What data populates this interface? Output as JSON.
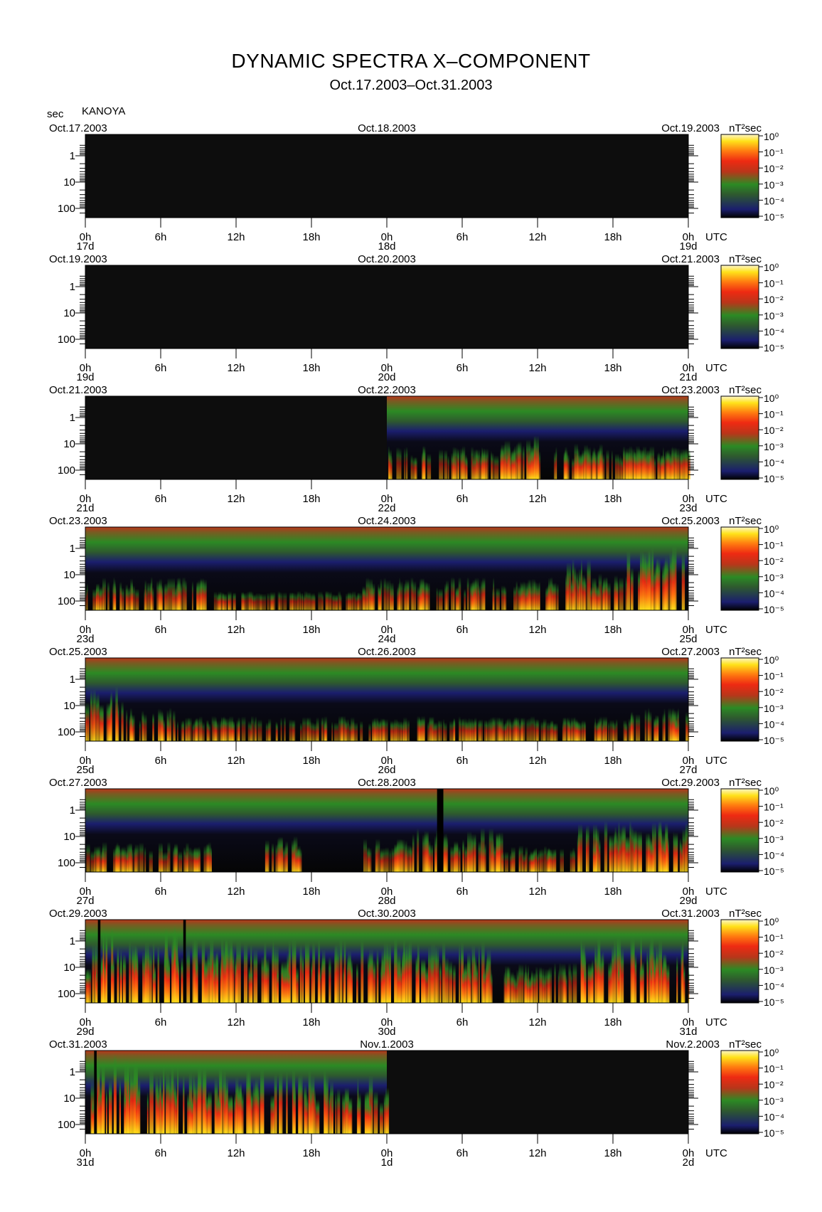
{
  "title": "DYNAMIC SPECTRA X–COMPONENT",
  "subtitle": "Oct.17.2003–Oct.31.2003",
  "y_unit": "sec",
  "station": "KANOYA",
  "colors": {
    "background": "#ffffff",
    "nodata": "#0d0d0d",
    "colormap": [
      "#000000",
      "#1b1e6e",
      "#2e5a2e",
      "#2c8a24",
      "#b8361a",
      "#ee2a12",
      "#ff7a10",
      "#ffe21a",
      "#fff6c8"
    ]
  },
  "chart_data": {
    "type": "heatmap",
    "title": "DYNAMIC SPECTRA X–COMPONENT",
    "subtitle": "Oct.17.2003–Oct.31.2003",
    "ylabel": "sec",
    "colorbar_label": "nT²sec",
    "colorbar_ticks": [
      "10⁰",
      "10⁻¹",
      "10⁻²",
      "10⁻³",
      "10⁻⁴",
      "10⁻⁵"
    ],
    "colorbar_range": [
      -5,
      0
    ],
    "y_ticks": [
      "1",
      "10",
      "100"
    ],
    "y_scale": "log",
    "x_ticks": [
      "0h",
      "6h",
      "12h",
      "18h",
      "0h",
      "6h",
      "12h",
      "18h",
      "0h"
    ],
    "x_unit_label": "UTC",
    "panels": [
      {
        "start_date": "Oct.17.2003",
        "mid_date": "Oct.18.2003",
        "end_date": "Oct.19.2003",
        "day_labels": [
          "17d",
          "18d",
          "19d"
        ],
        "data_start_hour": null,
        "data_end_hour": null,
        "gaps": [],
        "activity": []
      },
      {
        "start_date": "Oct.19.2003",
        "mid_date": "Oct.20.2003",
        "end_date": "Oct.21.2003",
        "day_labels": [
          "19d",
          "20d",
          "21d"
        ],
        "data_start_hour": null,
        "data_end_hour": null,
        "gaps": [],
        "activity": []
      },
      {
        "start_date": "Oct.21.2003",
        "mid_date": "Oct.22.2003",
        "end_date": "Oct.23.2003",
        "day_labels": [
          "21d",
          "22d",
          "23d"
        ],
        "data_start_hour": 24,
        "data_end_hour": 48,
        "gaps": [],
        "activity": [
          [
            24,
            48,
            0.3
          ],
          [
            33,
            36,
            0.45
          ],
          [
            38,
            41,
            0.35
          ],
          [
            43,
            47,
            0.3
          ]
        ]
      },
      {
        "start_date": "Oct.23.2003",
        "mid_date": "Oct.24.2003",
        "end_date": "Oct.25.2003",
        "day_labels": [
          "23d",
          "24d",
          "25d"
        ],
        "data_start_hour": 0,
        "data_end_hour": 48,
        "gaps": [],
        "activity": [
          [
            0,
            10,
            0.3
          ],
          [
            10,
            22,
            0.1
          ],
          [
            22,
            38,
            0.3
          ],
          [
            38,
            40,
            0.55
          ],
          [
            40,
            43,
            0.35
          ],
          [
            43,
            47.5,
            0.75
          ]
        ]
      },
      {
        "start_date": "Oct.25.2003",
        "mid_date": "Oct.26.2003",
        "end_date": "Oct.27.2003",
        "day_labels": [
          "25d",
          "26d",
          "27d"
        ],
        "data_start_hour": 0,
        "data_end_hour": 48,
        "gaps": [],
        "activity": [
          [
            0,
            3,
            0.6
          ],
          [
            3,
            7,
            0.3
          ],
          [
            7,
            43,
            0.18
          ],
          [
            43,
            48,
            0.3
          ]
        ]
      },
      {
        "start_date": "Oct.27.2003",
        "mid_date": "Oct.28.2003",
        "end_date": "Oct.29.2003",
        "day_labels": [
          "27d",
          "28d",
          "29d"
        ],
        "data_start_hour": 0,
        "data_end_hour": 48,
        "gaps": [
          [
            28.0,
            28.5
          ]
        ],
        "activity": [
          [
            0,
            10,
            0.25
          ],
          [
            14,
            17,
            0.35
          ],
          [
            22,
            26,
            0.3
          ],
          [
            26,
            33,
            0.45
          ],
          [
            33,
            39,
            0.2
          ],
          [
            39,
            48,
            0.55
          ]
        ]
      },
      {
        "start_date": "Oct.29.2003",
        "mid_date": "Oct.30.2003",
        "end_date": "Oct.31.2003",
        "day_labels": [
          "29d",
          "30d",
          "31d"
        ],
        "data_start_hour": 0,
        "data_end_hour": 48,
        "gaps": [
          [
            1.0,
            1.2
          ],
          [
            7.8,
            8.0
          ]
        ],
        "activity": [
          [
            0,
            1,
            0.7
          ],
          [
            1.2,
            3,
            0.95
          ],
          [
            3,
            6,
            0.7
          ],
          [
            6,
            7.8,
            0.95
          ],
          [
            8,
            26,
            0.75
          ],
          [
            26,
            32,
            0.7
          ],
          [
            32,
            39,
            0.4
          ],
          [
            39,
            48,
            0.8
          ]
        ]
      },
      {
        "start_date": "Oct.31.2003",
        "mid_date": "Nov.1.2003",
        "end_date": "Nov.2.2003",
        "day_labels": [
          "31d",
          "1d",
          "2d"
        ],
        "data_start_hour": 0,
        "data_end_hour": 24,
        "gaps": [
          [
            0.7,
            0.9
          ]
        ],
        "activity": [
          [
            0,
            0.7,
            0.6
          ],
          [
            0.9,
            4,
            0.95
          ],
          [
            4,
            11,
            0.8
          ],
          [
            11,
            19,
            0.75
          ],
          [
            19,
            24,
            0.65
          ]
        ]
      }
    ]
  }
}
